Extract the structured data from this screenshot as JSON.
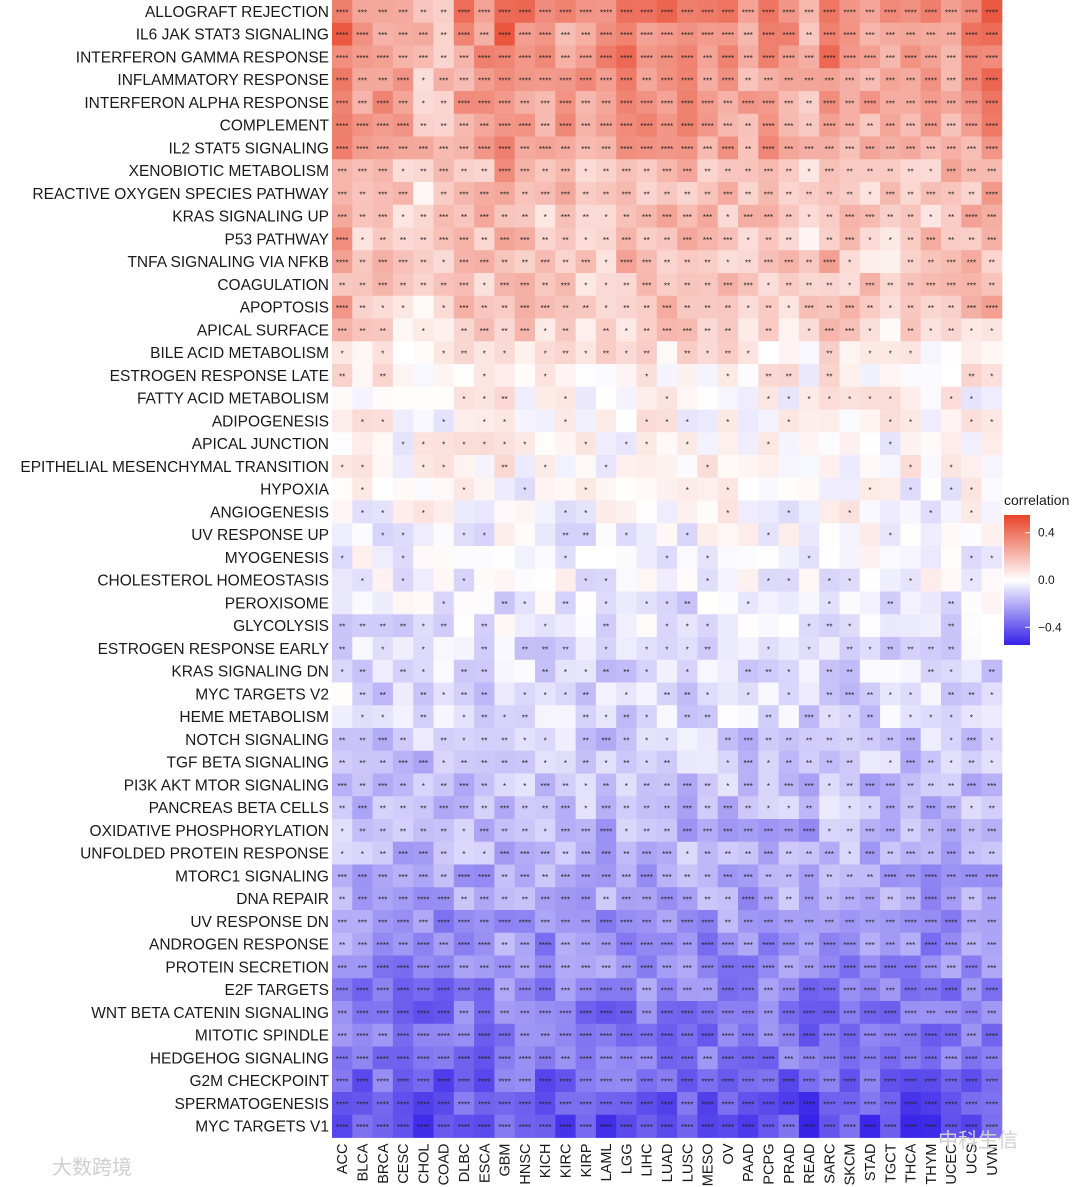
{
  "chart_data": {
    "type": "heatmap",
    "title": "",
    "legend_title": "correlation",
    "legend_ticks": [
      0.4,
      0.0,
      -0.4
    ],
    "legend_tick_labels": [
      "0.4",
      "0.0",
      "−0.4"
    ],
    "color_range": [
      -0.55,
      0.55
    ],
    "colors": {
      "high": "#e8442a",
      "mid": "#ffffff",
      "low": "#3520e8"
    },
    "rows": [
      "ALLOGRAFT REJECTION",
      "IL6 JAK STAT3 SIGNALING",
      "INTERFERON GAMMA RESPONSE",
      "INFLAMMATORY RESPONSE",
      "INTERFERON ALPHA RESPONSE",
      "COMPLEMENT",
      "IL2 STAT5 SIGNALING",
      "XENOBIOTIC METABOLISM",
      "REACTIVE OXYGEN SPECIES PATHWAY",
      "KRAS SIGNALING UP",
      "P53 PATHWAY",
      "TNFA SIGNALING VIA NFKB",
      "COAGULATION",
      "APOPTOSIS",
      "APICAL SURFACE",
      "BILE ACID METABOLISM",
      "ESTROGEN RESPONSE LATE",
      "FATTY ACID METABOLISM",
      "ADIPOGENESIS",
      "APICAL JUNCTION",
      "EPITHELIAL MESENCHYMAL TRANSITION",
      "HYPOXIA",
      "ANGIOGENESIS",
      "UV RESPONSE UP",
      "MYOGENESIS",
      "CHOLESTEROL HOMEOSTASIS",
      "PEROXISOME",
      "GLYCOLYSIS",
      "ESTROGEN RESPONSE EARLY",
      "KRAS SIGNALING DN",
      "MYC TARGETS V2",
      "HEME METABOLISM",
      "NOTCH SIGNALING",
      "TGF BETA SIGNALING",
      "PI3K AKT MTOR SIGNALING",
      "PANCREAS BETA CELLS",
      "OXIDATIVE PHOSPHORYLATION",
      "UNFOLDED PROTEIN RESPONSE",
      "MTORC1 SIGNALING",
      "DNA REPAIR",
      "UV RESPONSE DN",
      "ANDROGEN RESPONSE",
      "PROTEIN SECRETION",
      "E2F TARGETS",
      "WNT BETA CATENIN SIGNALING",
      "MITOTIC SPINDLE",
      "HEDGEHOG SIGNALING",
      "G2M CHECKPOINT",
      "SPERMATOGENESIS",
      "MYC TARGETS V1"
    ],
    "columns": [
      "ACC",
      "BLCA",
      "BRCA",
      "CESC",
      "CHOL",
      "COAD",
      "DLBC",
      "ESCA",
      "GBM",
      "HNSC",
      "KICH",
      "KIRC",
      "KIRP",
      "LAML",
      "LGG",
      "LIHC",
      "LUAD",
      "LUSC",
      "MESO",
      "OV",
      "PAAD",
      "PCPG",
      "PRAD",
      "READ",
      "SARC",
      "SKCM",
      "STAD",
      "TGCT",
      "THCA",
      "THYM",
      "UCEC",
      "UCS",
      "UVM"
    ],
    "column_profile": [
      0.55,
      0.25,
      0.3,
      0.2,
      0.05,
      0.05,
      0.3,
      0.3,
      0.55,
      0.35,
      0.2,
      0.25,
      0.25,
      0.3,
      0.45,
      0.4,
      0.35,
      0.3,
      0.3,
      0.3,
      0.25,
      0.35,
      0.3,
      0.05,
      0.45,
      0.3,
      0.2,
      0.15,
      0.2,
      0.2,
      0.25,
      0.35,
      0.5
    ],
    "row_profile": [
      0.85,
      0.75,
      0.75,
      0.7,
      0.7,
      0.7,
      0.65,
      0.5,
      0.45,
      0.45,
      0.45,
      0.4,
      0.4,
      0.4,
      0.3,
      0.15,
      0.1,
      0.05,
      0.05,
      0.05,
      0.05,
      0.0,
      0.0,
      -0.05,
      -0.05,
      -0.05,
      -0.1,
      -0.1,
      -0.15,
      -0.15,
      -0.15,
      -0.15,
      -0.2,
      -0.2,
      -0.25,
      -0.25,
      -0.3,
      -0.3,
      -0.35,
      -0.35,
      -0.4,
      -0.45,
      -0.45,
      -0.5,
      -0.55,
      -0.55,
      -0.55,
      -0.6,
      -0.65,
      -0.7
    ],
    "scale": 0.65,
    "significance_labels": [
      "*",
      "**",
      "***",
      "****"
    ]
  },
  "watermarks": {
    "top_right": "中科生信",
    "bottom_left": "大数跨境"
  }
}
